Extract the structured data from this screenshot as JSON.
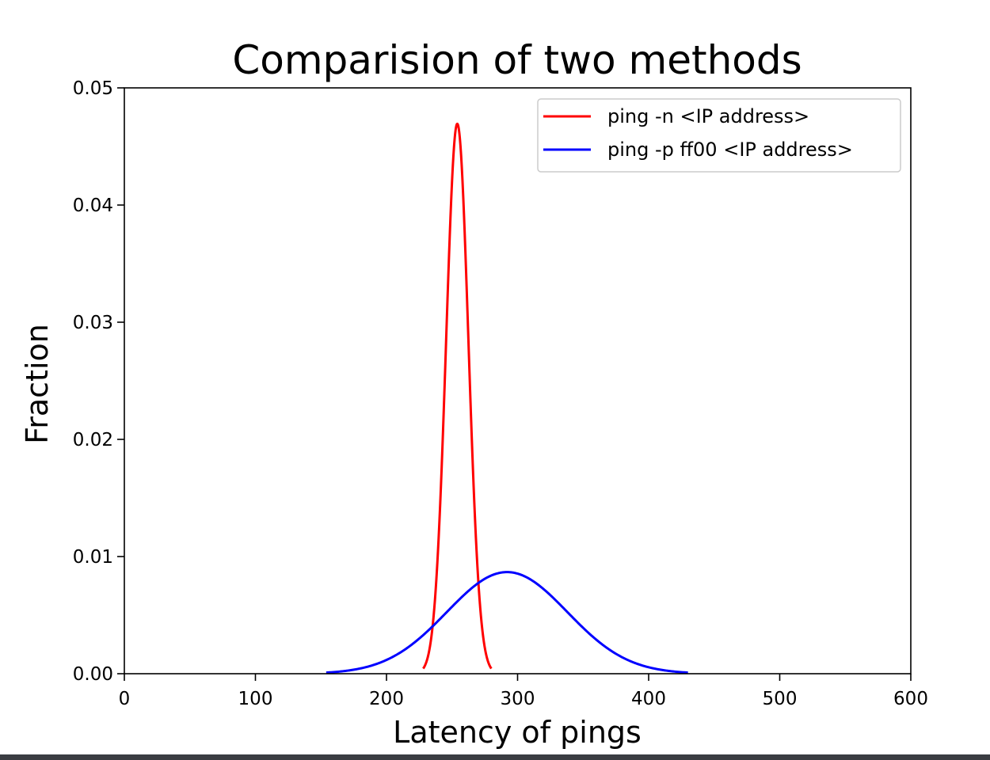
{
  "chart_data": {
    "type": "line",
    "title": "Comparision of two methods",
    "xlabel": "Latency of pings",
    "ylabel": "Fraction",
    "xlim": [
      0,
      600
    ],
    "ylim": [
      0,
      0.05
    ],
    "x_ticks": [
      "0",
      "100",
      "200",
      "300",
      "400",
      "500",
      "600"
    ],
    "y_ticks": [
      "0.00",
      "0.01",
      "0.02",
      "0.03",
      "0.04",
      "0.05"
    ],
    "grid": false,
    "legend_position": "top-right",
    "series": [
      {
        "name": "ping -n <IP address>",
        "color": "#ff0000",
        "distribution": "normal",
        "mean": 254,
        "std": 8.5,
        "x_range": [
          228,
          280
        ]
      },
      {
        "name": "ping -p ff00 <IP address>",
        "color": "#0000ff",
        "distribution": "normal",
        "mean": 292,
        "std": 46,
        "x_range": [
          154,
          430
        ]
      }
    ]
  }
}
